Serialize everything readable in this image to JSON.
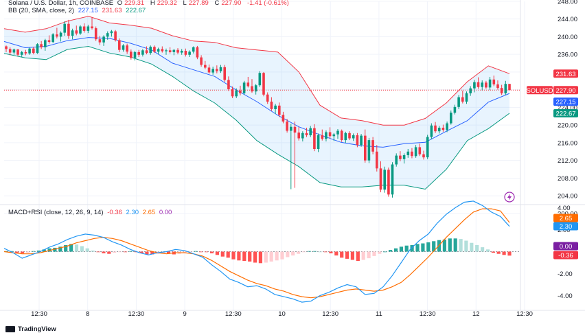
{
  "legend": {
    "symbol": "Solana / U.S. Dollar, 1h, COINBASE",
    "o_label": "O",
    "o_value": "229.31",
    "h_label": "H",
    "h_value": "229.32",
    "l_label": "L",
    "l_value": "227.89",
    "c_label": "C",
    "c_value": "227.90",
    "change": "-1.41 (-0.61%)",
    "bb_label": "BB (20, SMA, close, 2)",
    "bb_basis": "227.15",
    "bb_upper": "231.63",
    "bb_lower": "222.67",
    "macd_label": "MACD+RSI (close, 12, 26, 9, 14)",
    "macd_hist": "-0.36",
    "macd_line": "2.30",
    "macd_signal": "2.65",
    "rsi": "0.00"
  },
  "footer": {
    "brand": "TradingView"
  },
  "colors": {
    "up": "#089981",
    "down": "#f23645",
    "basis": "#2962ff",
    "band": "#2196f3",
    "signal": "#ff6d00",
    "grid": "#f0f3fa",
    "axis": "#131722"
  },
  "price_axis": {
    "ticks": [
      "248.00",
      "244.00",
      "240.00",
      "236.00",
      "232.00",
      "228.00",
      "224.00",
      "220.00",
      "216.00",
      "212.00",
      "208.00",
      "204.00",
      "200.00"
    ],
    "labels": [
      {
        "text": "231.63",
        "value": 231.63,
        "color": "#f23645"
      },
      {
        "text": "SOLUSD",
        "value": 227.9,
        "color": "#f23645"
      },
      {
        "text": "227.90",
        "value": 227.9,
        "color": "#f23645"
      },
      {
        "text": "227.15",
        "value": 227.15,
        "color": "#2962ff"
      },
      {
        "text": "222.67",
        "value": 222.67,
        "color": "#089981"
      }
    ]
  },
  "macd_axis": {
    "ticks": [
      "4.00",
      "2.00",
      "-2.00",
      "-4.00"
    ],
    "labels": [
      {
        "text": "2.65",
        "value": 2.65,
        "color": "#ff6d00"
      },
      {
        "text": "2.30",
        "value": 2.3,
        "color": "#2196f3"
      },
      {
        "text": "0.00",
        "value": 0.0,
        "color": "#7b1fa2"
      },
      {
        "text": "-0.36",
        "value": -0.36,
        "color": "#f23645"
      }
    ]
  },
  "time_axis": {
    "labels": [
      "12:30",
      "8",
      "12:30",
      "9",
      "12:30",
      "10",
      "12:30",
      "11",
      "12:30",
      "12",
      "12:30"
    ]
  },
  "chart_data": [
    {
      "type": "candlestick",
      "title": "Solana / U.S. Dollar, 1h, COINBASE",
      "ylim": [
        200,
        248
      ],
      "grid": true,
      "series_ohlc": [
        [
          237.8,
          238.0,
          236.5,
          237.2
        ],
        [
          237.2,
          237.6,
          235.8,
          236.4
        ],
        [
          236.4,
          237.3,
          235.9,
          237.1
        ],
        [
          237.1,
          237.2,
          235.6,
          235.9
        ],
        [
          235.9,
          236.8,
          235.3,
          236.5
        ],
        [
          236.5,
          237.0,
          235.8,
          236.2
        ],
        [
          236.2,
          237.5,
          235.9,
          237.3
        ],
        [
          237.3,
          237.7,
          236.0,
          236.3
        ],
        [
          236.3,
          238.5,
          236.1,
          238.3
        ],
        [
          238.3,
          239.0,
          237.2,
          237.6
        ],
        [
          237.6,
          239.5,
          236.8,
          239.2
        ],
        [
          239.2,
          240.3,
          238.4,
          238.8
        ],
        [
          238.8,
          240.8,
          238.5,
          240.5
        ],
        [
          240.5,
          242.0,
          239.6,
          240.0
        ],
        [
          240.0,
          241.2,
          238.9,
          240.9
        ],
        [
          240.9,
          243.5,
          240.2,
          242.9
        ],
        [
          242.9,
          243.8,
          239.5,
          240.2
        ],
        [
          240.2,
          241.8,
          239.4,
          241.4
        ],
        [
          241.4,
          242.5,
          240.3,
          240.7
        ],
        [
          240.7,
          242.6,
          240.4,
          242.3
        ],
        [
          242.3,
          243.0,
          240.9,
          241.3
        ],
        [
          241.3,
          242.7,
          240.8,
          242.3
        ],
        [
          242.3,
          244.3,
          241.6,
          241.9
        ],
        [
          241.9,
          242.3,
          239.0,
          239.4
        ],
        [
          239.4,
          240.2,
          238.1,
          238.7
        ],
        [
          238.7,
          240.3,
          237.9,
          240.0
        ],
        [
          240.0,
          241.2,
          239.3,
          240.8
        ],
        [
          240.8,
          241.5,
          240.0,
          241.2
        ],
        [
          241.2,
          241.5,
          238.9,
          239.2
        ],
        [
          239.2,
          239.6,
          236.5,
          237.0
        ],
        [
          237.0,
          238.3,
          236.6,
          238.0
        ],
        [
          238.0,
          238.4,
          236.1,
          236.6
        ],
        [
          236.6,
          237.1,
          234.8,
          235.2
        ],
        [
          235.2,
          236.8,
          234.6,
          236.5
        ],
        [
          236.5,
          237.0,
          235.4,
          235.9
        ],
        [
          235.9,
          237.2,
          235.5,
          236.9
        ],
        [
          236.9,
          237.8,
          236.0,
          236.3
        ],
        [
          236.3,
          238.0,
          235.9,
          237.7
        ],
        [
          237.7,
          238.0,
          236.3,
          236.6
        ],
        [
          236.6,
          237.5,
          236.0,
          237.2
        ],
        [
          237.2,
          237.8,
          236.4,
          236.7
        ],
        [
          236.7,
          237.3,
          235.9,
          236.9
        ],
        [
          236.9,
          237.6,
          236.2,
          236.5
        ],
        [
          236.5,
          237.2,
          235.8,
          237.0
        ],
        [
          237.0,
          237.4,
          236.0,
          236.4
        ],
        [
          236.4,
          237.2,
          235.9,
          236.8
        ],
        [
          236.8,
          237.3,
          235.5,
          235.9
        ],
        [
          235.9,
          236.9,
          235.4,
          236.6
        ],
        [
          236.6,
          237.8,
          236.2,
          237.6
        ],
        [
          237.6,
          237.9,
          234.9,
          235.3
        ],
        [
          235.3,
          235.8,
          233.2,
          233.6
        ],
        [
          233.6,
          234.5,
          232.6,
          233.0
        ],
        [
          233.0,
          233.7,
          231.6,
          231.9
        ],
        [
          231.9,
          233.2,
          231.4,
          232.7
        ],
        [
          232.7,
          233.5,
          231.7,
          232.2
        ],
        [
          232.2,
          233.6,
          231.8,
          233.1
        ],
        [
          233.1,
          233.6,
          229.8,
          230.2
        ],
        [
          230.2,
          231.0,
          227.7,
          228.1
        ],
        [
          228.1,
          228.7,
          226.1,
          226.5
        ],
        [
          226.5,
          228.3,
          226.1,
          227.8
        ],
        [
          227.8,
          228.9,
          226.7,
          227.2
        ],
        [
          227.2,
          230.0,
          226.9,
          229.6
        ],
        [
          229.6,
          230.9,
          228.5,
          228.8
        ],
        [
          228.8,
          230.4,
          227.3,
          227.6
        ],
        [
          227.6,
          229.3,
          226.9,
          229.0
        ],
        [
          229.0,
          232.2,
          228.6,
          231.8
        ],
        [
          231.8,
          232.0,
          226.5,
          226.9
        ],
        [
          226.9,
          227.4,
          224.8,
          225.3
        ],
        [
          225.3,
          226.3,
          223.2,
          223.6
        ],
        [
          223.6,
          224.8,
          222.5,
          224.4
        ],
        [
          224.4,
          225.1,
          221.8,
          222.3
        ],
        [
          222.3,
          223.0,
          220.4,
          220.8
        ],
        [
          220.8,
          221.4,
          218.3,
          218.7
        ],
        [
          218.7,
          220.3,
          205.5,
          219.6
        ],
        [
          219.6,
          220.8,
          205.8,
          218.3
        ],
        [
          218.3,
          219.6,
          216.5,
          217.0
        ],
        [
          217.0,
          218.6,
          216.3,
          218.2
        ],
        [
          218.2,
          219.4,
          217.3,
          217.7
        ],
        [
          217.7,
          219.8,
          217.3,
          219.3
        ],
        [
          219.3,
          220.2,
          214.1,
          214.6
        ],
        [
          214.6,
          218.1,
          213.9,
          217.7
        ],
        [
          217.7,
          219.0,
          216.5,
          216.9
        ],
        [
          216.9,
          218.8,
          216.3,
          218.4
        ],
        [
          218.4,
          219.5,
          216.9,
          217.5
        ],
        [
          217.5,
          218.2,
          216.4,
          217.9
        ],
        [
          217.9,
          219.1,
          216.9,
          218.7
        ],
        [
          218.7,
          219.0,
          216.2,
          216.6
        ],
        [
          216.6,
          218.5,
          216.0,
          218.2
        ],
        [
          218.2,
          218.6,
          216.6,
          217.0
        ],
        [
          217.0,
          218.1,
          216.4,
          217.7
        ],
        [
          217.7,
          218.2,
          215.0,
          215.5
        ],
        [
          215.5,
          218.0,
          215.1,
          217.6
        ],
        [
          217.6,
          219.0,
          211.5,
          212.0
        ],
        [
          212.0,
          217.1,
          211.4,
          216.6
        ],
        [
          216.6,
          217.3,
          213.4,
          214.0
        ],
        [
          214.0,
          215.5,
          209.5,
          210.2
        ],
        [
          210.2,
          211.8,
          204.8,
          205.4
        ],
        [
          205.4,
          210.6,
          204.7,
          209.9
        ],
        [
          209.9,
          210.4,
          203.8,
          204.3
        ],
        [
          204.3,
          211.6,
          203.6,
          211.1
        ],
        [
          211.1,
          213.6,
          210.6,
          213.1
        ],
        [
          213.1,
          214.1,
          211.8,
          212.3
        ],
        [
          212.3,
          213.6,
          211.3,
          213.2
        ],
        [
          213.2,
          214.6,
          212.6,
          214.0
        ],
        [
          214.0,
          214.8,
          212.5,
          213.0
        ],
        [
          213.0,
          215.5,
          212.6,
          215.0
        ],
        [
          215.0,
          215.8,
          213.0,
          213.4
        ],
        [
          213.4,
          214.2,
          212.2,
          212.7
        ],
        [
          212.7,
          217.8,
          212.3,
          217.3
        ],
        [
          217.3,
          220.4,
          216.8,
          219.9
        ],
        [
          219.9,
          220.7,
          218.2,
          218.6
        ],
        [
          218.6,
          219.8,
          218.1,
          219.4
        ],
        [
          219.4,
          220.1,
          218.5,
          218.9
        ],
        [
          218.9,
          220.8,
          218.4,
          220.4
        ],
        [
          220.4,
          223.3,
          220.1,
          222.8
        ],
        [
          222.8,
          224.6,
          222.4,
          224.1
        ],
        [
          224.1,
          226.8,
          223.6,
          226.3
        ],
        [
          226.3,
          227.8,
          224.9,
          225.3
        ],
        [
          225.3,
          227.6,
          224.8,
          227.2
        ],
        [
          227.2,
          228.8,
          226.6,
          228.3
        ],
        [
          228.3,
          230.2,
          227.4,
          229.7
        ],
        [
          229.7,
          230.8,
          228.2,
          228.6
        ],
        [
          228.6,
          230.1,
          227.8,
          229.6
        ],
        [
          229.6,
          230.0,
          228.2,
          228.5
        ],
        [
          228.5,
          230.9,
          227.9,
          230.3
        ],
        [
          230.3,
          231.2,
          228.8,
          229.2
        ],
        [
          229.2,
          230.1,
          228.0,
          228.4
        ],
        [
          228.4,
          229.1,
          226.8,
          227.2
        ],
        [
          227.2,
          230.0,
          226.8,
          229.31
        ],
        [
          229.31,
          229.32,
          227.89,
          227.9
        ]
      ],
      "bb_basis": [
        238.9,
        237.5,
        237.8,
        239.1,
        239.8,
        239.6,
        238.5,
        237.0,
        234.0,
        232.5,
        231.0,
        228.0,
        225.3,
        222.2,
        219.6,
        217.8,
        216.1,
        215.3,
        215.0,
        215.8,
        216.1,
        218.6,
        221.0,
        225.2,
        227.15
      ],
      "bb_upper": [
        241.8,
        241.0,
        241.8,
        243.5,
        244.6,
        243.1,
        242.6,
        241.9,
        240.2,
        239.0,
        238.7,
        237.5,
        237.0,
        236.5,
        232.0,
        224.5,
        221.6,
        221.0,
        220.0,
        220.0,
        221.5,
        225.0,
        229.8,
        233.4,
        231.63
      ],
      "bb_lower": [
        236.2,
        235.2,
        234.8,
        237.1,
        237.8,
        236.3,
        235.4,
        233.8,
        231.0,
        227.7,
        225.0,
        221.2,
        216.5,
        213.4,
        210.6,
        207.0,
        206.0,
        206.0,
        206.4,
        206.4,
        205.5,
        210.0,
        216.5,
        219.2,
        222.67
      ]
    },
    {
      "type": "line",
      "title": "MACD+RSI (close, 12, 26, 9, 14)",
      "ylim": [
        -5,
        5
      ],
      "macd": [
        0.3,
        -0.1,
        -0.6,
        -0.3,
        0.0,
        0.4,
        0.7,
        1.1,
        1.4,
        1.6,
        1.5,
        1.3,
        0.9,
        0.6,
        0.2,
        -0.1,
        -0.3,
        -0.1,
        0.0,
        0.2,
        0.1,
        -0.2,
        -0.5,
        -1.2,
        -1.8,
        -2.5,
        -2.8,
        -3.2,
        -3.1,
        -3.4,
        -3.9,
        -4.1,
        -4.3,
        -4.6,
        -4.5,
        -4.0,
        -3.7,
        -3.3,
        -3.0,
        -3.2,
        -3.9,
        -3.8,
        -3.2,
        -2.2,
        -1.0,
        0.2,
        1.0,
        1.6,
        2.6,
        3.4,
        4.0,
        4.5,
        4.6,
        4.2,
        3.6,
        3.2,
        2.3
      ],
      "signal": [
        0.0,
        -0.1,
        -0.2,
        -0.2,
        -0.1,
        0.1,
        0.3,
        0.5,
        0.8,
        1.0,
        1.2,
        1.3,
        1.2,
        1.0,
        0.7,
        0.4,
        0.1,
        -0.1,
        -0.2,
        -0.1,
        -0.1,
        -0.2,
        -0.4,
        -0.8,
        -1.3,
        -1.8,
        -2.2,
        -2.6,
        -2.9,
        -3.1,
        -3.4,
        -3.6,
        -3.9,
        -4.1,
        -4.2,
        -4.1,
        -3.9,
        -3.7,
        -3.5,
        -3.4,
        -3.5,
        -3.6,
        -3.5,
        -3.2,
        -2.8,
        -2.1,
        -1.3,
        -0.5,
        0.4,
        1.3,
        2.1,
        2.9,
        3.6,
        3.9,
        3.9,
        3.7,
        2.65
      ],
      "histogram": [
        0.05,
        0.05,
        -0.1,
        -0.15,
        -0.1,
        0.05,
        0.1,
        0.2,
        0.3,
        0.35,
        0.45,
        0.6,
        0.7,
        0.65,
        0.5,
        0.3,
        0.1,
        -0.05,
        -0.15,
        -0.2,
        -0.1,
        -0.05,
        -0.05,
        0.05,
        -0.05,
        -0.15,
        -0.25,
        -0.25,
        -0.2,
        -0.15,
        -0.2,
        -0.25,
        -0.2,
        -0.1,
        -0.05,
        0.05,
        -0.05,
        -0.05,
        -0.15,
        -0.3,
        -0.45,
        -0.55,
        -0.7,
        -0.8,
        -0.85,
        -0.9,
        -1.0,
        -1.05,
        -1.0,
        -0.9,
        -0.8,
        -0.7,
        -0.5,
        -0.35,
        -0.2,
        -0.05,
        0.05,
        0.05,
        0.0,
        -0.05,
        -0.15,
        -0.35,
        -0.55,
        -0.65,
        -0.75,
        -0.85,
        -0.75,
        -0.6,
        -0.4,
        -0.2,
        0.0,
        0.15,
        0.3,
        0.45,
        0.55,
        0.6,
        0.7,
        0.75,
        0.85,
        0.95,
        1.05,
        1.1,
        1.2,
        1.2,
        1.15,
        1.0,
        0.8,
        0.6,
        0.4,
        0.2,
        -0.1,
        -0.2,
        -0.3,
        -0.36
      ]
    }
  ]
}
